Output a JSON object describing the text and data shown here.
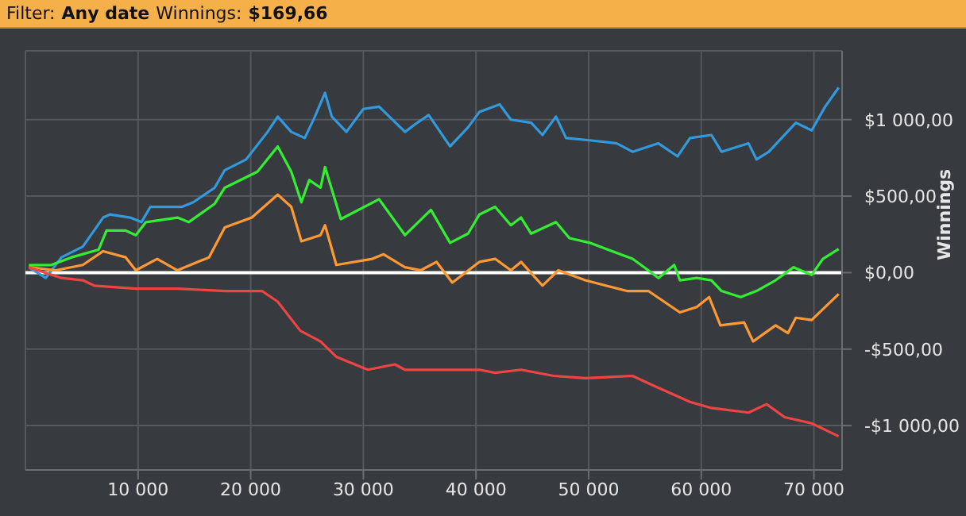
{
  "chart_data": {
    "type": "line",
    "annotations": [
      "Filter:",
      "Any date",
      "Winnings:",
      "$169,66"
    ],
    "ylabel": "Winnings",
    "xlim": [
      0,
      72500
    ],
    "xticks": [
      {
        "value": 10000,
        "label": "10 000"
      },
      {
        "value": 20000,
        "label": "20 000"
      },
      {
        "value": 30000,
        "label": "30 000"
      },
      {
        "value": 40000,
        "label": "40 000"
      },
      {
        "value": 50000,
        "label": "50 000"
      },
      {
        "value": 60000,
        "label": "60 000"
      },
      {
        "value": 70000,
        "label": "70 000"
      }
    ],
    "ylim": [
      -1290,
      1450
    ],
    "yticks": [
      {
        "value": -1000,
        "label": "-$1 000,00"
      },
      {
        "value": -500,
        "label": "-$500,00"
      },
      {
        "value": 0,
        "label": "$0,00"
      },
      {
        "value": 500,
        "label": "$500,00"
      },
      {
        "value": 1000,
        "label": "$1 000,00"
      }
    ],
    "grid": true,
    "legend": false,
    "marker": "none",
    "line_style": "solid",
    "ref_lines": [
      {
        "axis": "y",
        "value": 0,
        "color": "#ffffff"
      }
    ],
    "series": [
      {
        "color": "#3399dd",
        "x": [
          300,
          1800,
          3200,
          5100,
          6900,
          7500,
          9300,
          10300,
          11100,
          13900,
          14900,
          16800,
          17700,
          19600,
          21500,
          22400,
          23600,
          24800,
          25700,
          26600,
          27200,
          28500,
          30000,
          31400,
          33700,
          34600,
          35800,
          37700,
          39300,
          40300,
          42100,
          43100,
          44900,
          45900,
          47100,
          48000,
          50100,
          52500,
          53900,
          56200,
          57900,
          59000,
          60900,
          61800,
          64200,
          64900,
          66000,
          68400,
          69800,
          71000,
          72200
        ],
        "values": [
          35,
          -35,
          100,
          170,
          360,
          380,
          360,
          330,
          430,
          430,
          460,
          555,
          670,
          740,
          920,
          1020,
          920,
          880,
          1020,
          1175,
          1020,
          920,
          1070,
          1085,
          920,
          970,
          1030,
          825,
          950,
          1050,
          1100,
          1000,
          980,
          900,
          1020,
          880,
          865,
          845,
          790,
          845,
          760,
          880,
          900,
          790,
          845,
          740,
          790,
          980,
          930,
          1085,
          1210
        ]
      },
      {
        "color": "#33ee33",
        "x": [
          300,
          2300,
          4100,
          6500,
          7200,
          8900,
          9800,
          10700,
          13500,
          14500,
          16800,
          17700,
          20600,
          22400,
          23600,
          24500,
          25200,
          26200,
          26600,
          28000,
          31400,
          33700,
          36000,
          37700,
          39300,
          40300,
          41700,
          43100,
          44000,
          44900,
          47100,
          48300,
          50100,
          53900,
          55300,
          56200,
          57600,
          58100,
          59600,
          60900,
          61800,
          63500,
          64900,
          66600,
          68200,
          69800,
          70800,
          72200
        ],
        "values": [
          50,
          50,
          100,
          150,
          275,
          275,
          245,
          330,
          360,
          330,
          450,
          555,
          660,
          825,
          660,
          460,
          605,
          555,
          690,
          350,
          480,
          245,
          410,
          195,
          255,
          380,
          430,
          310,
          360,
          255,
          330,
          225,
          195,
          90,
          15,
          -35,
          50,
          -50,
          -35,
          -50,
          -120,
          -160,
          -120,
          -50,
          35,
          -15,
          90,
          155
        ]
      },
      {
        "color": "#ff9933",
        "x": [
          300,
          2700,
          5100,
          6900,
          8900,
          9800,
          11700,
          13500,
          16300,
          17700,
          20100,
          22400,
          23600,
          24500,
          26200,
          26600,
          27600,
          30800,
          31800,
          33700,
          35100,
          36500,
          37900,
          40300,
          41700,
          43100,
          44000,
          45900,
          47300,
          49700,
          53400,
          55300,
          58100,
          59600,
          60700,
          61700,
          63800,
          64600,
          66600,
          67700,
          68400,
          69800,
          72200
        ],
        "values": [
          35,
          15,
          50,
          140,
          100,
          15,
          90,
          15,
          100,
          295,
          360,
          510,
          430,
          205,
          245,
          310,
          50,
          90,
          120,
          35,
          15,
          70,
          -65,
          70,
          90,
          15,
          70,
          -85,
          15,
          -50,
          -120,
          -120,
          -260,
          -225,
          -160,
          -345,
          -325,
          -450,
          -345,
          -395,
          -295,
          -310,
          -140
        ]
      },
      {
        "color": "#ee4444",
        "x": [
          300,
          3200,
          5100,
          6100,
          9800,
          13500,
          17700,
          21000,
          22400,
          24400,
          26200,
          27600,
          30400,
          32800,
          33700,
          40300,
          41700,
          44000,
          46900,
          49700,
          53900,
          55800,
          59000,
          60900,
          64200,
          65800,
          67400,
          69800,
          72200
        ],
        "values": [
          35,
          -35,
          -50,
          -85,
          -105,
          -105,
          -120,
          -120,
          -190,
          -380,
          -450,
          -550,
          -635,
          -600,
          -635,
          -635,
          -655,
          -635,
          -675,
          -690,
          -675,
          -740,
          -845,
          -885,
          -915,
          -860,
          -945,
          -985,
          -1070
        ]
      }
    ]
  }
}
